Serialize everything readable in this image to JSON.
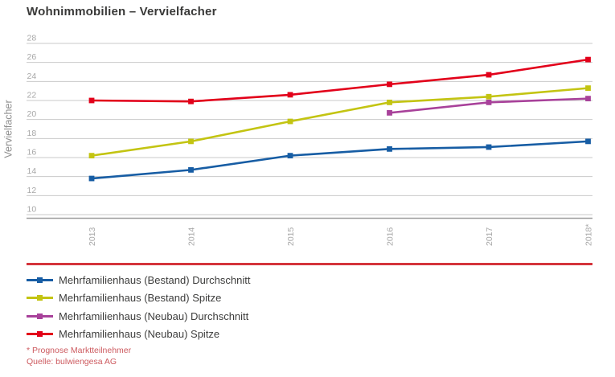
{
  "chart_data": {
    "type": "line",
    "title": "Wohnimmobilien – Vervielfacher",
    "ylabel": "Vervielfacher",
    "xlabel": "",
    "categories": [
      "2013",
      "2014",
      "2015",
      "2016",
      "2017",
      "2018*"
    ],
    "series": [
      {
        "name": "Mehrfamilienhaus (Bestand) Durchschnitt",
        "color": "#175da4",
        "values": [
          13.8,
          14.7,
          16.2,
          16.9,
          17.1,
          17.7
        ]
      },
      {
        "name": "Mehrfamilienhaus (Bestand) Spitze",
        "color": "#c3c412",
        "values": [
          16.2,
          17.7,
          19.8,
          21.8,
          22.4,
          23.3
        ]
      },
      {
        "name": "Mehrfamilienhaus (Neubau) Durchschnitt",
        "color": "#a8419a",
        "values": [
          null,
          null,
          null,
          20.7,
          21.8,
          22.2
        ]
      },
      {
        "name": "Mehrfamilienhaus (Neubau) Spitze",
        "color": "#e2001a",
        "values": [
          22.0,
          21.9,
          22.6,
          23.7,
          24.7,
          26.3
        ]
      }
    ],
    "ylim": [
      10,
      28
    ],
    "ytick_step": 2,
    "grid": true,
    "legend_position": "bottom",
    "marker": "square"
  },
  "footnotes": [
    "* Prognose Marktteilnehmer",
    "Quelle: bulwiengesa AG"
  ],
  "colors": {
    "grid": "#c9c9c9",
    "axis_line": "#9c9c9c",
    "tick_label": "#a7a7a7",
    "rule": "#d4343b",
    "footnote": "#cd5a5f"
  }
}
